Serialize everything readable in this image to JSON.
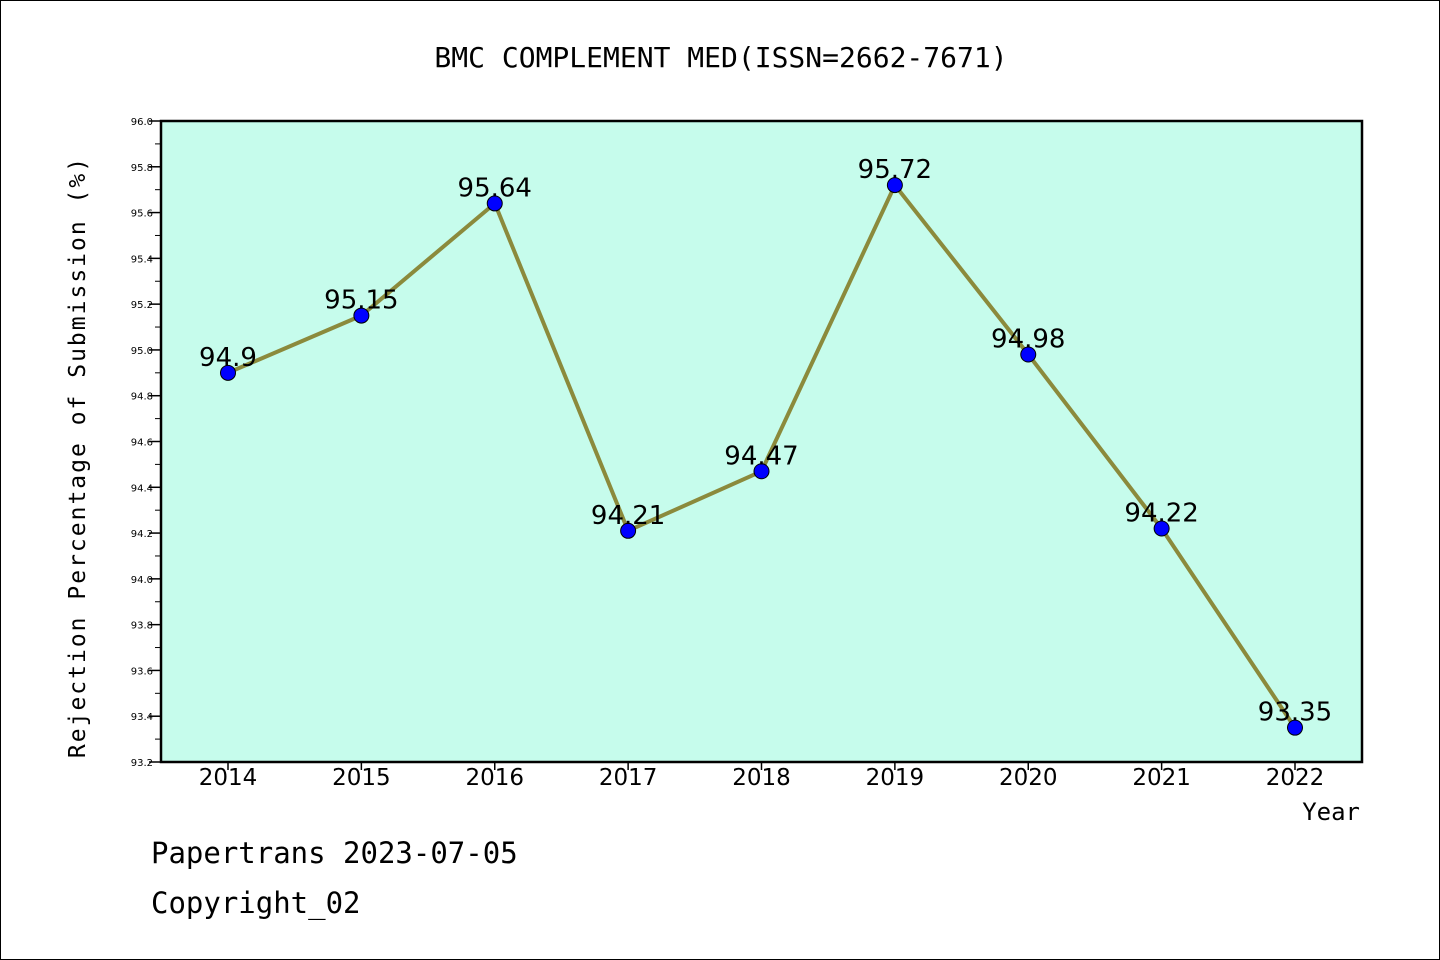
{
  "chart_data": {
    "type": "line",
    "title": "BMC COMPLEMENT MED(ISSN=2662-7671)",
    "xlabel": "Year",
    "ylabel": "Rejection Percentage of Submission (%)",
    "categories": [
      "2014",
      "2015",
      "2016",
      "2017",
      "2018",
      "2019",
      "2020",
      "2021",
      "2022"
    ],
    "series": [
      {
        "values": [
          94.9,
          95.15,
          95.64,
          94.21,
          94.47,
          95.72,
          94.98,
          94.22,
          93.35
        ],
        "labels": [
          "94.9",
          "95.15",
          "95.64",
          "94.21",
          "94.47",
          "95.72",
          "94.98",
          "94.22",
          "93.35"
        ]
      }
    ],
    "ylim": [
      93.2,
      96.0
    ],
    "ytick_labels": [
      "93.2",
      "93.4",
      "93.6",
      "93.8",
      "94.0",
      "94.2",
      "94.4",
      "94.6",
      "94.8",
      "95.0",
      "95.2",
      "95.4",
      "95.6",
      "95.8",
      "96.0"
    ],
    "grid": false,
    "colors": {
      "plot_background": "#c6fcec",
      "line": "#8b8a3c",
      "marker": "#0000ff"
    }
  },
  "footer": {
    "line1": "Papertrans 2023-07-05",
    "line2": "Copyright_02"
  }
}
